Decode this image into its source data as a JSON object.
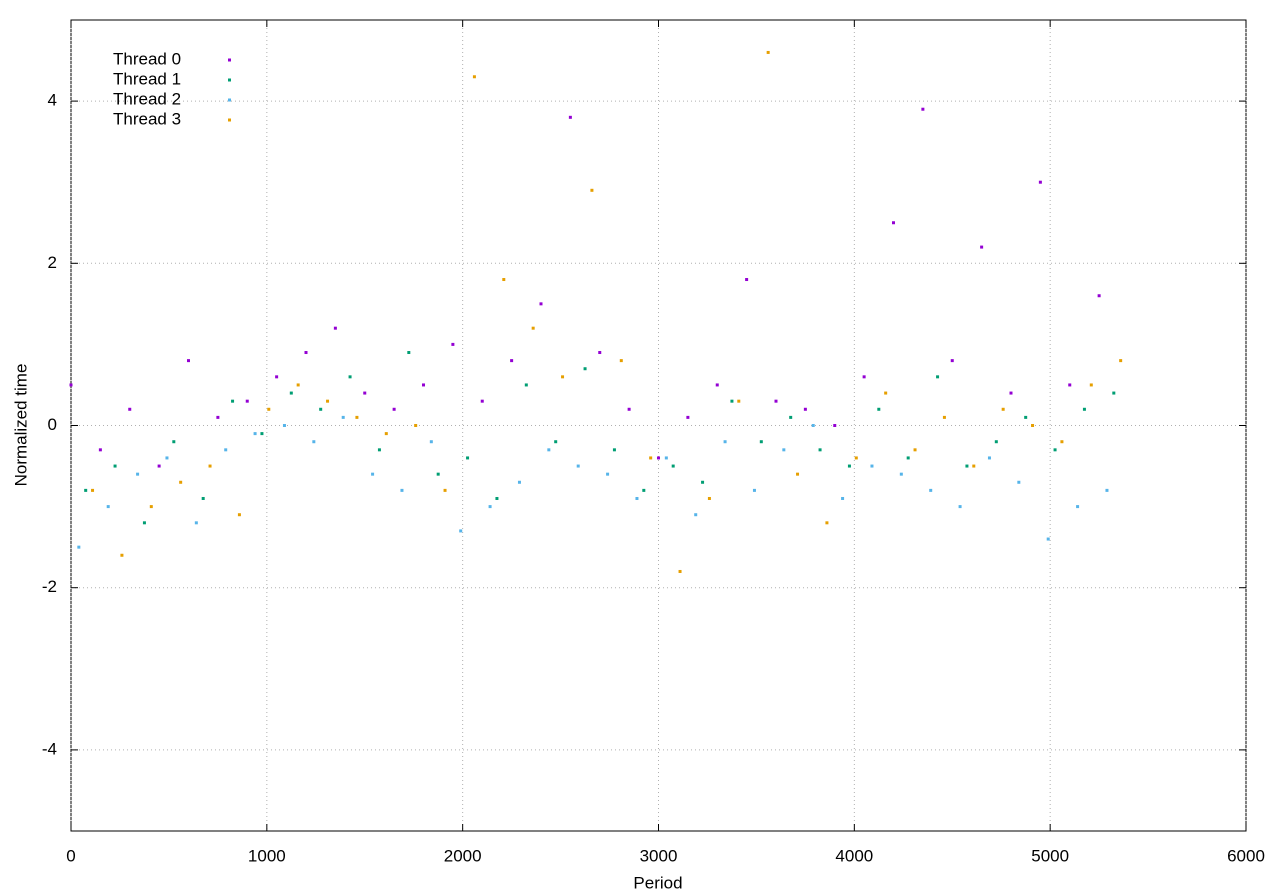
{
  "chart_data": {
    "type": "scatter",
    "x_label": "Period",
    "y_label": "Normalized time",
    "xlim": [
      0,
      6000
    ],
    "xticks": [
      0,
      1000,
      2000,
      3000,
      4000,
      5000,
      6000
    ],
    "ylim": [
      -5,
      5
    ],
    "yticks": [
      -4,
      -2,
      0,
      2,
      4
    ],
    "grid": true,
    "legend": "top-left",
    "series": [
      {
        "name": "Thread 0",
        "color": "#9400d3",
        "x": [
          0,
          150,
          300,
          450,
          600,
          750,
          900,
          1050,
          1200,
          1350,
          1500,
          1650,
          1800,
          1950,
          2100,
          2250,
          2400,
          2550,
          2700,
          2850,
          3000,
          3150,
          3300,
          3450,
          3600,
          3750,
          3900,
          4050,
          4200,
          4350,
          4500,
          4650,
          4800,
          4950,
          5100,
          5250
        ],
        "values": [
          0.5,
          -0.3,
          0.2,
          -0.5,
          0.8,
          0.1,
          0.3,
          0.6,
          0.9,
          1.2,
          0.4,
          0.2,
          0.5,
          1.0,
          0.3,
          0.8,
          1.5,
          3.8,
          0.9,
          0.2,
          -0.4,
          0.1,
          0.5,
          1.8,
          0.3,
          0.2,
          0.0,
          0.6,
          2.5,
          3.9,
          0.8,
          2.2,
          0.4,
          3.0,
          0.5,
          1.6
        ]
      },
      {
        "name": "Thread 1",
        "color": "#009e73",
        "x": [
          75,
          225,
          375,
          525,
          675,
          825,
          975,
          1125,
          1275,
          1425,
          1575,
          1725,
          1875,
          2025,
          2175,
          2325,
          2475,
          2625,
          2775,
          2925,
          3075,
          3225,
          3375,
          3525,
          3675,
          3825,
          3975,
          4125,
          4275,
          4425,
          4575,
          4725,
          4875,
          5025,
          5175,
          5325
        ],
        "values": [
          -0.8,
          -0.5,
          -1.2,
          -0.2,
          -0.9,
          0.3,
          -0.1,
          0.4,
          0.2,
          0.6,
          -0.3,
          0.9,
          -0.6,
          -0.4,
          -0.9,
          0.5,
          -0.2,
          0.7,
          -0.3,
          -0.8,
          -0.5,
          -0.7,
          0.3,
          -0.2,
          0.1,
          -0.3,
          -0.5,
          0.2,
          -0.4,
          0.6,
          -0.5,
          -0.2,
          0.1,
          -0.3,
          0.2,
          0.4
        ]
      },
      {
        "name": "Thread 2",
        "color": "#56b4e9",
        "x": [
          40,
          190,
          340,
          490,
          640,
          790,
          940,
          1090,
          1240,
          1390,
          1540,
          1690,
          1840,
          1990,
          2140,
          2290,
          2440,
          2590,
          2740,
          2890,
          3040,
          3190,
          3340,
          3490,
          3640,
          3790,
          3940,
          4090,
          4240,
          4390,
          4540,
          4690,
          4840,
          4990,
          5140,
          5290
        ],
        "values": [
          -1.5,
          -1.0,
          -0.6,
          -0.4,
          -1.2,
          -0.3,
          -0.1,
          0.0,
          -0.2,
          0.1,
          -0.6,
          -0.8,
          -0.2,
          -1.3,
          -1.0,
          -0.7,
          -0.3,
          -0.5,
          -0.6,
          -0.9,
          -0.4,
          -1.1,
          -0.2,
          -0.8,
          -0.3,
          0.0,
          -0.9,
          -0.5,
          -0.6,
          -0.8,
          -1.0,
          -0.4,
          -0.7,
          -1.4,
          -1.0,
          -0.8
        ]
      },
      {
        "name": "Thread 3",
        "color": "#e69f00",
        "x": [
          110,
          260,
          410,
          560,
          710,
          860,
          1010,
          1160,
          1310,
          1460,
          1610,
          1760,
          1910,
          2060,
          2210,
          2360,
          2510,
          2660,
          2810,
          2960,
          3110,
          3260,
          3410,
          3560,
          3710,
          3860,
          4010,
          4160,
          4310,
          4460,
          4610,
          4760,
          4910,
          5060,
          5210,
          5360
        ],
        "values": [
          -0.8,
          -1.6,
          -1.0,
          -0.7,
          -0.5,
          -1.1,
          0.2,
          0.5,
          0.3,
          0.1,
          -0.1,
          0.0,
          -0.8,
          4.3,
          1.8,
          1.2,
          0.6,
          2.9,
          0.8,
          -0.4,
          -1.8,
          -0.9,
          0.3,
          4.6,
          -0.6,
          -1.2,
          -0.4,
          0.4,
          -0.3,
          0.1,
          -0.5,
          0.2,
          0.0,
          -0.2,
          0.5,
          0.8
        ]
      }
    ]
  }
}
